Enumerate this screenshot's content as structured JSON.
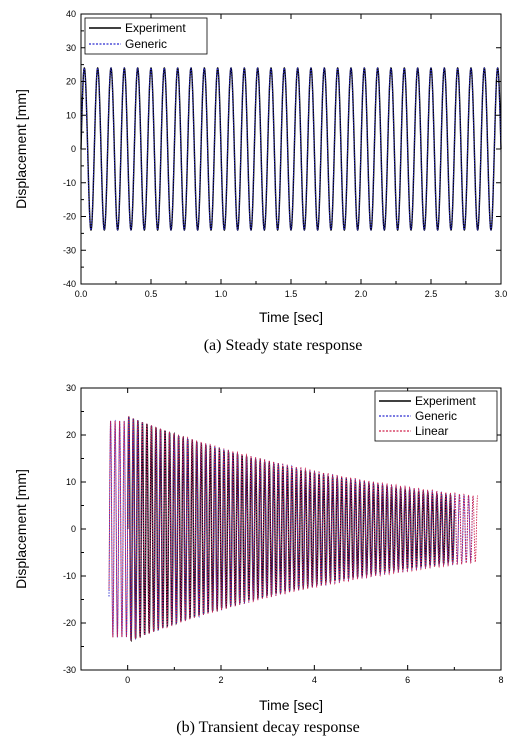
{
  "chart_data": [
    {
      "type": "line",
      "caption": "(a) Steady state response",
      "xlabel": "Time [sec]",
      "ylabel": "Displacement [mm]",
      "xlim": [
        0,
        3.0
      ],
      "ylim": [
        -40,
        40
      ],
      "xticks": [
        "0.0",
        "0.5",
        "1.0",
        "1.5",
        "2.0",
        "2.5",
        "3.0"
      ],
      "yticks": [
        "-40",
        "-30",
        "-20",
        "-10",
        "0",
        "10",
        "20",
        "30",
        "40"
      ],
      "legend_position": "top-left",
      "signal": {
        "amplitude": 24,
        "frequency_hz": 10.5,
        "t_start": 0.0,
        "t_end": 3.0
      },
      "series": [
        {
          "name": "Experiment",
          "color": "#000000",
          "dash": "solid"
        },
        {
          "name": "Generic",
          "color": "#2a2ad0",
          "dash": "dotted"
        }
      ]
    },
    {
      "type": "line",
      "caption": "(b) Transient decay response",
      "xlabel": "Time [sec]",
      "ylabel": "Displacement [mm]",
      "xlim": [
        -1,
        8
      ],
      "ylim": [
        -30,
        30
      ],
      "xticks": [
        "0",
        "2",
        "4",
        "6",
        "8"
      ],
      "yticks": [
        "-30",
        "-20",
        "-10",
        "0",
        "10",
        "20",
        "30"
      ],
      "legend_position": "top-right",
      "signal": {
        "amplitude_start": 24,
        "amplitude_end": 7,
        "frequency_hz": 10.3
      },
      "series": [
        {
          "name": "Experiment",
          "color": "#000000",
          "dash": "solid",
          "t_start": 0.0,
          "t_end": 7.0
        },
        {
          "name": "Generic",
          "color": "#2a2ad0",
          "dash": "dotted",
          "t_start": -0.4,
          "t_end": 7.4
        },
        {
          "name": "Linear",
          "color": "#d0204a",
          "dash": "dotted",
          "t_start": -0.4,
          "t_end": 7.5
        }
      ]
    }
  ]
}
